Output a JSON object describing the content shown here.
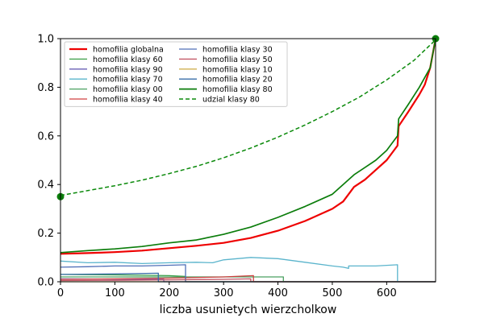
{
  "chart_data": {
    "type": "line",
    "title": "",
    "xlabel": "liczba usunietych wierzcholkow",
    "ylabel": "",
    "xlim": [
      0,
      690
    ],
    "ylim": [
      0.0,
      1.0
    ],
    "xticks": [
      0,
      100,
      200,
      300,
      400,
      500,
      600
    ],
    "yticks": [
      0.0,
      0.2,
      0.4,
      0.6,
      0.8,
      1.0
    ],
    "xtick_labels": [
      "0",
      "100",
      "200",
      "300",
      "400",
      "500",
      "600"
    ],
    "ytick_labels": [
      "0.0",
      "0.2",
      "0.4",
      "0.6",
      "0.8",
      "1.0"
    ],
    "grid": false,
    "legend_position": "top-left",
    "legend_columns": 2,
    "series": [
      {
        "name": "homofilia globalna",
        "color": "#ee0000",
        "width": 2.2,
        "dash": "solid",
        "x": [
          0,
          50,
          100,
          150,
          200,
          250,
          300,
          350,
          400,
          450,
          500,
          520,
          540,
          560,
          580,
          600,
          620,
          622,
          640,
          660,
          670,
          680,
          690
        ],
        "y": [
          0.115,
          0.118,
          0.122,
          0.128,
          0.138,
          0.148,
          0.16,
          0.18,
          0.21,
          0.25,
          0.3,
          0.33,
          0.39,
          0.42,
          0.46,
          0.5,
          0.56,
          0.64,
          0.7,
          0.77,
          0.81,
          0.88,
          1.0
        ]
      },
      {
        "name": "homofilia klasy 60",
        "color": "#3a9e48",
        "width": 1.3,
        "dash": "solid",
        "x": [
          0,
          100,
          200,
          230,
          230,
          690
        ],
        "y": [
          0.03,
          0.028,
          0.025,
          0.022,
          0.0,
          0.0
        ]
      },
      {
        "name": "homofilia klasy 90",
        "color": "#6a5fb5",
        "width": 1.3,
        "dash": "solid",
        "x": [
          0,
          190,
          190,
          690
        ],
        "y": [
          0.012,
          0.01,
          0.0,
          0.0
        ]
      },
      {
        "name": "homofilia klasy 70",
        "color": "#5ab4cc",
        "width": 1.3,
        "dash": "solid",
        "x": [
          0,
          50,
          100,
          150,
          200,
          250,
          280,
          300,
          350,
          400,
          450,
          500,
          520,
          530,
          530,
          580,
          620,
          620,
          690
        ],
        "y": [
          0.085,
          0.078,
          0.08,
          0.075,
          0.078,
          0.08,
          0.078,
          0.09,
          0.1,
          0.095,
          0.08,
          0.065,
          0.06,
          0.055,
          0.065,
          0.065,
          0.07,
          0.0,
          0.0
        ]
      },
      {
        "name": "homofilia klasy 00",
        "color": "#4aa060",
        "width": 1.3,
        "dash": "solid",
        "x": [
          0,
          100,
          200,
          300,
          400,
          410,
          410,
          690
        ],
        "y": [
          0.02,
          0.02,
          0.02,
          0.02,
          0.02,
          0.02,
          0.0,
          0.0
        ]
      },
      {
        "name": "homofilia klasy 40",
        "color": "#d04040",
        "width": 1.3,
        "dash": "solid",
        "x": [
          0,
          100,
          200,
          300,
          355,
          355,
          690
        ],
        "y": [
          0.01,
          0.012,
          0.015,
          0.02,
          0.025,
          0.0,
          0.0
        ]
      },
      {
        "name": "homofilia klasy 30",
        "color": "#4f6fb8",
        "width": 1.3,
        "dash": "solid",
        "x": [
          0,
          50,
          100,
          150,
          200,
          230,
          230,
          690
        ],
        "y": [
          0.06,
          0.062,
          0.065,
          0.065,
          0.068,
          0.07,
          0.0,
          0.0
        ]
      },
      {
        "name": "homofilia klasy 50",
        "color": "#c05060",
        "width": 1.3,
        "dash": "solid",
        "x": [
          0,
          100,
          200,
          300,
          350,
          350,
          690
        ],
        "y": [
          0.005,
          0.006,
          0.008,
          0.01,
          0.012,
          0.0,
          0.0
        ]
      },
      {
        "name": "homofilia klasy 10",
        "color": "#d0b050",
        "width": 1.3,
        "dash": "solid",
        "x": [
          0,
          690
        ],
        "y": [
          0.0,
          0.0
        ]
      },
      {
        "name": "homofilia klasy 20",
        "color": "#3a6ea8",
        "width": 1.3,
        "dash": "solid",
        "x": [
          0,
          100,
          180,
          180,
          690
        ],
        "y": [
          0.03,
          0.032,
          0.035,
          0.0,
          0.0
        ]
      },
      {
        "name": "homofilia klasy 80",
        "color": "#0b7d0b",
        "width": 1.7,
        "dash": "solid",
        "x": [
          0,
          50,
          100,
          150,
          200,
          250,
          300,
          350,
          400,
          450,
          500,
          520,
          540,
          560,
          580,
          600,
          620,
          622,
          640,
          660,
          680,
          690
        ],
        "y": [
          0.12,
          0.128,
          0.135,
          0.145,
          0.16,
          0.172,
          0.195,
          0.225,
          0.265,
          0.31,
          0.36,
          0.4,
          0.44,
          0.47,
          0.5,
          0.54,
          0.6,
          0.67,
          0.73,
          0.8,
          0.88,
          1.0
        ]
      },
      {
        "name": "udzial klasy 80",
        "color": "#0b8a0b",
        "width": 1.5,
        "dash": "dashed",
        "x": [
          0,
          50,
          100,
          150,
          200,
          250,
          300,
          350,
          400,
          450,
          500,
          550,
          600,
          650,
          690
        ],
        "y": [
          0.355,
          0.375,
          0.395,
          0.418,
          0.445,
          0.475,
          0.51,
          0.55,
          0.595,
          0.645,
          0.7,
          0.76,
          0.83,
          0.91,
          0.995
        ]
      }
    ],
    "markers": [
      {
        "x": 0,
        "y": 0.35,
        "color": "#0b7d0b"
      },
      {
        "x": 690,
        "y": 1.0,
        "color": "#0b7d0b"
      }
    ]
  }
}
